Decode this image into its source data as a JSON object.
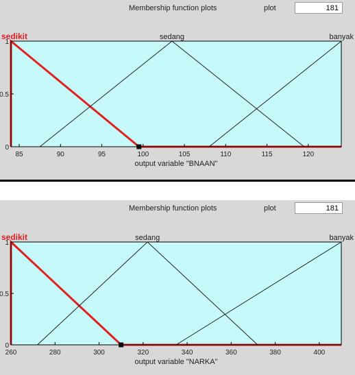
{
  "header": {
    "title": "Membership function plots",
    "plot_label": "plot",
    "plot_points": "181"
  },
  "chart_data": [
    {
      "type": "line",
      "xlabel": "output variable \"BNAAN\"",
      "xlim": [
        84,
        124
      ],
      "ylim": [
        0,
        1
      ],
      "xticks": [
        85,
        90,
        95,
        100,
        105,
        110,
        115,
        120
      ],
      "yticks": [
        0,
        0.5,
        1
      ],
      "ytick_labels": [
        "0",
        "0.5",
        "1"
      ],
      "series": [
        {
          "name": "sedikit",
          "x": [
            84,
            84,
            99.5,
            124
          ],
          "y": [
            0,
            1,
            0,
            0
          ],
          "color": "#e02020",
          "width": 3
        },
        {
          "name": "sedang",
          "x": [
            87.5,
            103.5,
            119.5
          ],
          "y": [
            0,
            1,
            0
          ],
          "color": "#202020",
          "width": 1
        },
        {
          "name": "banyak",
          "x": [
            108,
            124
          ],
          "y": [
            0,
            1
          ],
          "color": "#202020",
          "width": 1
        }
      ],
      "labels": [
        {
          "text": "sedikit",
          "x": 84,
          "color": "#e02020"
        },
        {
          "text": "sedang",
          "x": 103.5,
          "color": "#202020"
        },
        {
          "text": "banyak",
          "x": 124,
          "color": "#202020"
        }
      ],
      "selected_marker": {
        "x": 99.5,
        "y": 0
      }
    },
    {
      "type": "line",
      "xlabel": "output variable \"NARKA\"",
      "xlim": [
        260,
        410
      ],
      "ylim": [
        0,
        1
      ],
      "xticks": [
        260,
        280,
        300,
        320,
        340,
        360,
        380,
        400
      ],
      "yticks": [
        0,
        0.5,
        1
      ],
      "ytick_labels": [
        "0",
        "0.5",
        "1"
      ],
      "series": [
        {
          "name": "sedikit",
          "x": [
            260,
            260,
            310,
            410
          ],
          "y": [
            0,
            1,
            0,
            0
          ],
          "color": "#e02020",
          "width": 3
        },
        {
          "name": "sedang",
          "x": [
            272,
            322,
            372
          ],
          "y": [
            0,
            1,
            0
          ],
          "color": "#202020",
          "width": 1
        },
        {
          "name": "banyak",
          "x": [
            335,
            410
          ],
          "y": [
            0,
            1
          ],
          "color": "#202020",
          "width": 1
        }
      ],
      "labels": [
        {
          "text": "sedikit",
          "x": 260,
          "color": "#e02020"
        },
        {
          "text": "sedang",
          "x": 322,
          "color": "#202020"
        },
        {
          "text": "banyak",
          "x": 410,
          "color": "#202020"
        }
      ],
      "selected_marker": {
        "x": 310,
        "y": 0
      }
    }
  ]
}
